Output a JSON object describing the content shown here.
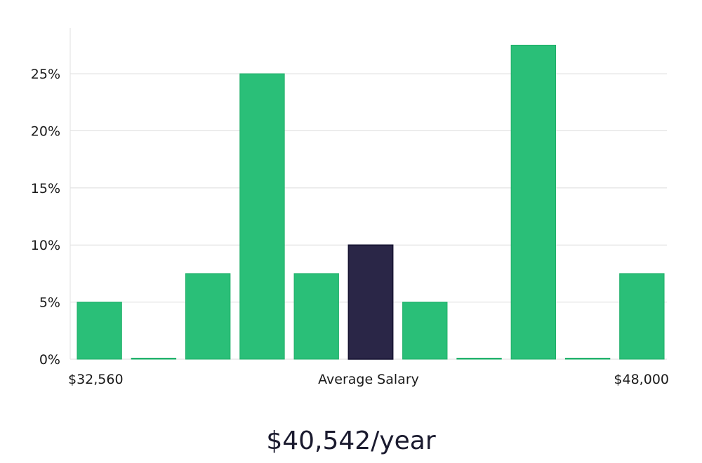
{
  "chart_data": {
    "type": "bar",
    "values": [
      5,
      0,
      7.5,
      25,
      7.5,
      10,
      5,
      0,
      27.5,
      0,
      7.5
    ],
    "highlight_index": 5,
    "ylim": [
      0,
      29
    ],
    "yticks": [
      "0%",
      "5%",
      "10%",
      "15%",
      "20%",
      "25%"
    ],
    "ytick_values": [
      0,
      5,
      10,
      15,
      20,
      25
    ],
    "x_min_label": "$32,560",
    "x_center_label": "Average Salary",
    "x_max_label": "$48,000",
    "grid": true,
    "colors": {
      "bar": "#2abf78",
      "bar_stroke": "#1fae68",
      "highlight": "#2a2647",
      "highlight_stroke": "#151230",
      "grid": "#dcdcdc",
      "axis": "#e2e2e2"
    }
  },
  "salary": {
    "value": "$40,542/year"
  }
}
